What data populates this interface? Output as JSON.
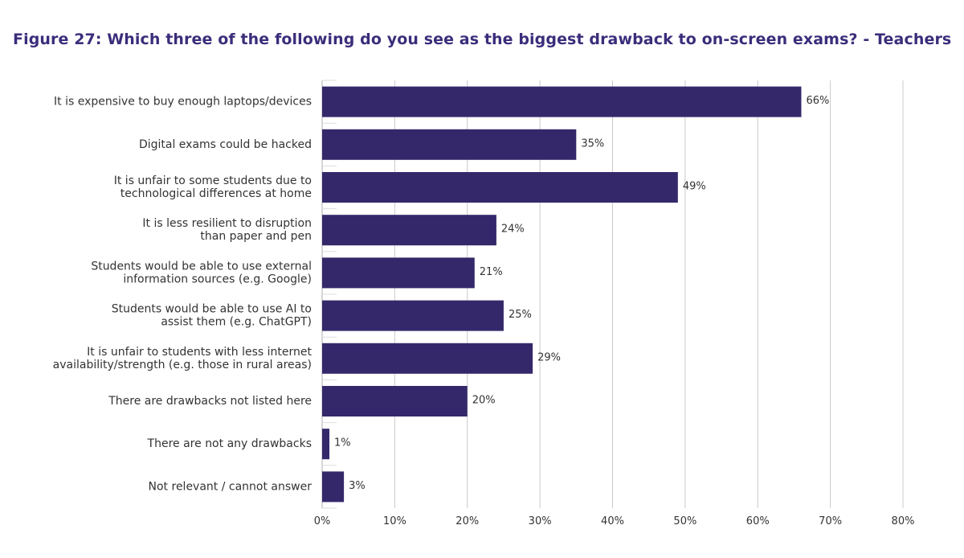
{
  "title": "Figure 27: Which three of the following do you see as the biggest drawback to on-screen exams? - Teachers",
  "colors": {
    "bar": "#35286a",
    "grid": "#c9c9c9",
    "title": "#3c2d7b"
  },
  "chart_data": {
    "type": "bar",
    "orientation": "horizontal",
    "title": "Figure 27: Which three of the following do you see as the biggest drawback to on-screen exams? - Teachers",
    "categories": [
      [
        "It is expensive to buy enough laptops/devices"
      ],
      [
        "Digital exams could be hacked"
      ],
      [
        "It is unfair to some students due to",
        "technological differences at home"
      ],
      [
        "It is less resilient to disruption",
        "than paper and pen"
      ],
      [
        "Students would be able to use external",
        "information sources (e.g. Google)"
      ],
      [
        "Students would be able to use AI to",
        "assist them (e.g. ChatGPT)"
      ],
      [
        "It is unfair to students with less internet",
        "availability/strength (e.g. those in rural areas)"
      ],
      [
        "There are drawbacks not listed here"
      ],
      [
        "There are not any drawbacks"
      ],
      [
        "Not relevant / cannot answer"
      ]
    ],
    "values": [
      66,
      35,
      49,
      24,
      21,
      25,
      29,
      20,
      1,
      3
    ],
    "value_labels": [
      "66%",
      "35%",
      "49%",
      "24%",
      "21%",
      "25%",
      "29%",
      "20%",
      "1%",
      "3%"
    ],
    "xlim": [
      0,
      80
    ],
    "xticks": [
      0,
      10,
      20,
      30,
      40,
      50,
      60,
      70,
      80
    ],
    "xtick_labels": [
      "0%",
      "10%",
      "20%",
      "30%",
      "40%",
      "50%",
      "60%",
      "70%",
      "80%"
    ],
    "grid": true,
    "legend": "none"
  }
}
